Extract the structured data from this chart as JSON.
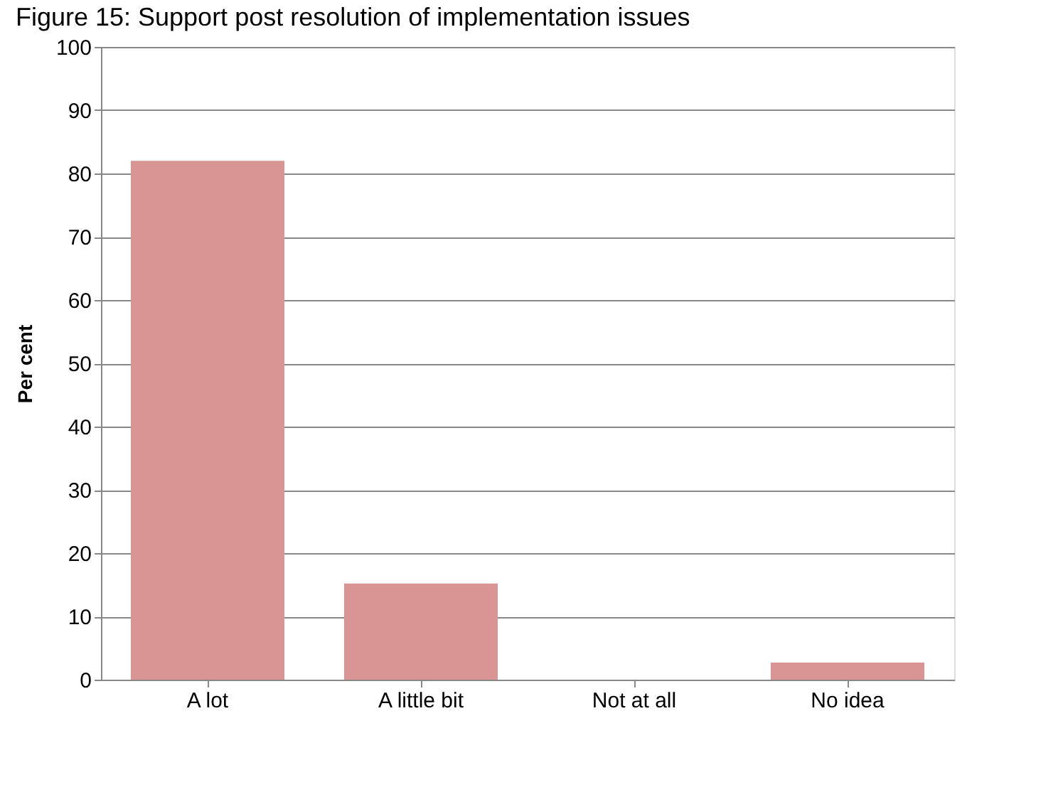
{
  "chart_data": {
    "type": "bar",
    "title": "Figure 15: Support post resolution of implementation issues",
    "ylabel": "Per cent",
    "categories": [
      "A lot",
      "A little bit",
      "Not at all",
      "No idea"
    ],
    "values": [
      82,
      15.2,
      0,
      2.7
    ],
    "color": "#d99594",
    "ylim": [
      0,
      100
    ],
    "yticks": [
      0,
      10,
      20,
      30,
      40,
      50,
      60,
      70,
      80,
      90,
      100
    ],
    "grid": "y"
  }
}
